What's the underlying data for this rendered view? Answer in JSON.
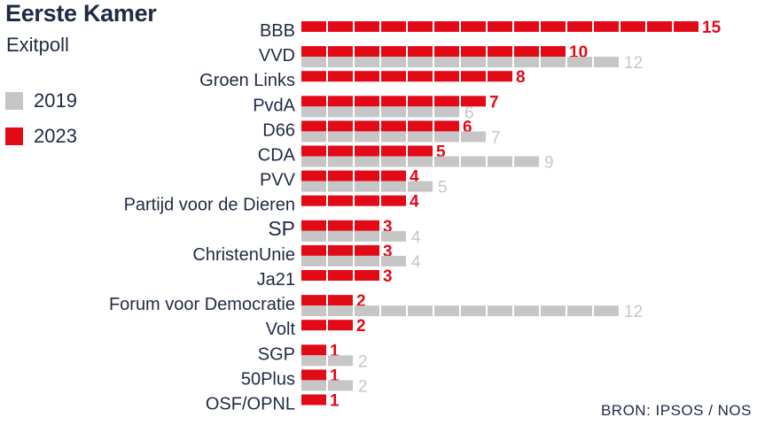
{
  "header": {
    "title": "Eerste Kamer",
    "subtitle": "Exitpoll"
  },
  "legend": [
    {
      "label": "2019",
      "color": "#c6c6c6"
    },
    {
      "label": "2023",
      "color": "#e20a17"
    }
  ],
  "source": "BRON: IPSOS / NOS",
  "chart_data": {
    "type": "bar",
    "orientation": "horizontal",
    "categories": [
      "BBB",
      "VVD",
      "Groen Links",
      "PvdA",
      "D66",
      "CDA",
      "PVV",
      "Partijd voor de Dieren",
      "SP",
      "ChristenUnie",
      "Ja21",
      "Forum voor Democratie",
      "Volt",
      "SGP",
      "50Plus",
      "OSF/OPNL"
    ],
    "series": [
      {
        "name": "2023",
        "color": "#e20a17",
        "values": [
          15,
          10,
          8,
          7,
          6,
          5,
          4,
          4,
          3,
          3,
          3,
          2,
          2,
          1,
          1,
          1
        ]
      },
      {
        "name": "2019",
        "color": "#c6c6c6",
        "values": [
          null,
          12,
          null,
          6,
          7,
          9,
          5,
          null,
          4,
          4,
          null,
          12,
          null,
          2,
          2,
          null
        ]
      }
    ],
    "xlim": [
      0,
      15
    ],
    "grid": false,
    "legend_position": "left"
  }
}
